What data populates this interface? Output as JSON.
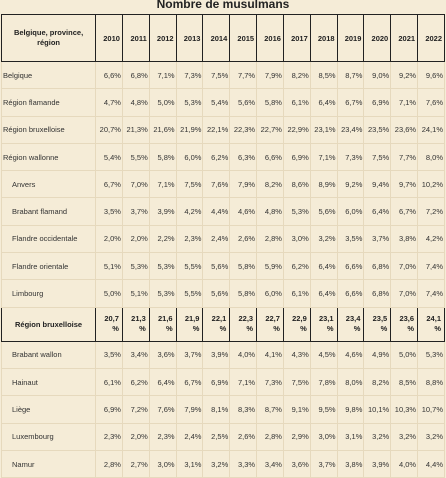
{
  "title": "Nombre de musulmans",
  "header": {
    "first_col": "Belgique, province, région",
    "years": [
      "2010",
      "2011",
      "2012",
      "2013",
      "2014",
      "2015",
      "2016",
      "2017",
      "2018",
      "2019",
      "2020",
      "2021",
      "2022"
    ]
  },
  "rows_top": [
    {
      "label": "Belgique",
      "indent": false,
      "values": [
        "6,6%",
        "6,8%",
        "7,1%",
        "7,3%",
        "7,5%",
        "7,7%",
        "7,9%",
        "8,2%",
        "8,5%",
        "8,7%",
        "9,0%",
        "9,2%",
        "9,6%"
      ]
    },
    {
      "label": "Région flamande",
      "indent": false,
      "values": [
        "4,7%",
        "4,8%",
        "5,0%",
        "5,3%",
        "5,4%",
        "5,6%",
        "5,8%",
        "6,1%",
        "6,4%",
        "6,7%",
        "6,9%",
        "7,1%",
        "7,6%"
      ]
    },
    {
      "label": "Région bruxelloise",
      "indent": false,
      "values": [
        "20,7%",
        "21,3%",
        "21,6%",
        "21,9%",
        "22,1%",
        "22,3%",
        "22,7%",
        "22,9%",
        "23,1%",
        "23,4%",
        "23,5%",
        "23,6%",
        "24,1%"
      ]
    },
    {
      "label": "Région wallonne",
      "indent": false,
      "values": [
        "5,4%",
        "5,5%",
        "5,8%",
        "6,0%",
        "6,2%",
        "6,3%",
        "6,6%",
        "6,9%",
        "7,1%",
        "7,3%",
        "7,5%",
        "7,7%",
        "8,0%"
      ]
    },
    {
      "label": "Anvers",
      "indent": true,
      "values": [
        "6,7%",
        "7,0%",
        "7,1%",
        "7,5%",
        "7,6%",
        "7,9%",
        "8,2%",
        "8,6%",
        "8,9%",
        "9,2%",
        "9,4%",
        "9,7%",
        "10,2%"
      ]
    },
    {
      "label": "Brabant flamand",
      "indent": true,
      "values": [
        "3,5%",
        "3,7%",
        "3,9%",
        "4,2%",
        "4,4%",
        "4,6%",
        "4,8%",
        "5,3%",
        "5,6%",
        "6,0%",
        "6,4%",
        "6,7%",
        "7,2%"
      ]
    },
    {
      "label": "Flandre occidentale",
      "indent": true,
      "values": [
        "2,0%",
        "2,0%",
        "2,2%",
        "2,3%",
        "2,4%",
        "2,6%",
        "2,8%",
        "3,0%",
        "3,2%",
        "3,5%",
        "3,7%",
        "3,8%",
        "4,2%"
      ]
    },
    {
      "label": "Flandre orientale",
      "indent": true,
      "values": [
        "5,1%",
        "5,3%",
        "5,3%",
        "5,5%",
        "5,6%",
        "5,8%",
        "5,9%",
        "6,2%",
        "6,4%",
        "6,6%",
        "6,8%",
        "7,0%",
        "7,4%"
      ]
    },
    {
      "label": "Limbourg",
      "indent": true,
      "values": [
        "5,0%",
        "5,1%",
        "5,3%",
        "5,5%",
        "5,6%",
        "5,8%",
        "6,0%",
        "6,1%",
        "6,4%",
        "6,6%",
        "6,8%",
        "7,0%",
        "7,4%"
      ]
    }
  ],
  "subheader": {
    "label": "Région bruxelloise",
    "values": [
      "20,7 %",
      "21,3 %",
      "21,6 %",
      "21,9 %",
      "22,1 %",
      "22,3 %",
      "22,7 %",
      "22,9 %",
      "23,1 %",
      "23,4 %",
      "23,5 %",
      "23,6 %",
      "24,1 %"
    ]
  },
  "rows_bottom": [
    {
      "label": "Brabant wallon",
      "indent": true,
      "values": [
        "3,5%",
        "3,4%",
        "3,6%",
        "3,7%",
        "3,9%",
        "4,0%",
        "4,1%",
        "4,3%",
        "4,5%",
        "4,6%",
        "4,9%",
        "5,0%",
        "5,3%"
      ]
    },
    {
      "label": "Hainaut",
      "indent": true,
      "values": [
        "6,1%",
        "6,2%",
        "6,4%",
        "6,7%",
        "6,9%",
        "7,1%",
        "7,3%",
        "7,5%",
        "7,8%",
        "8,0%",
        "8,2%",
        "8,5%",
        "8,8%"
      ]
    },
    {
      "label": "Liège",
      "indent": true,
      "values": [
        "6,9%",
        "7,2%",
        "7,6%",
        "7,9%",
        "8,1%",
        "8,3%",
        "8,7%",
        "9,1%",
        "9,5%",
        "9,8%",
        "10,1%",
        "10,3%",
        "10,7%"
      ]
    },
    {
      "label": "Luxembourg",
      "indent": true,
      "values": [
        "2,3%",
        "2,0%",
        "2,3%",
        "2,4%",
        "2,5%",
        "2,6%",
        "2,8%",
        "2,9%",
        "3,0%",
        "3,1%",
        "3,2%",
        "3,2%",
        "3,2%"
      ]
    },
    {
      "label": "Namur",
      "indent": true,
      "values": [
        "2,8%",
        "2,7%",
        "3,0%",
        "3,1%",
        "3,2%",
        "3,3%",
        "3,4%",
        "3,6%",
        "3,7%",
        "3,8%",
        "3,9%",
        "4,0%",
        "4,4%"
      ]
    }
  ]
}
